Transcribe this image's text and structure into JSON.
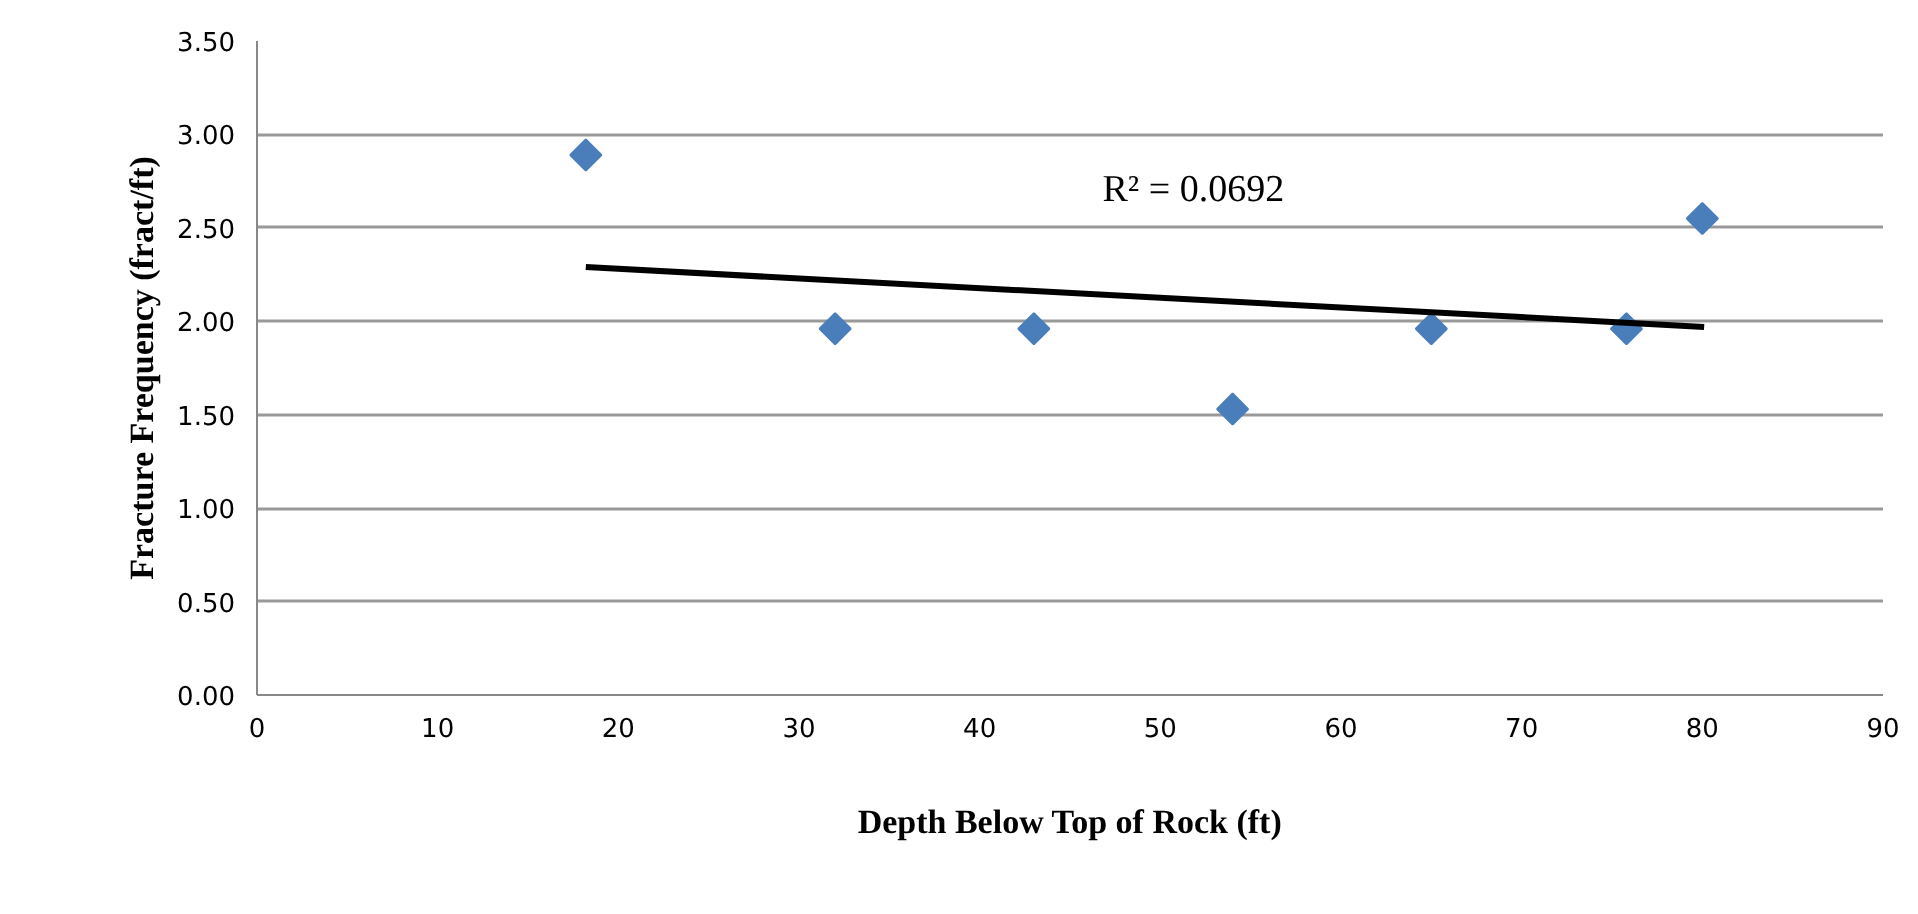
{
  "chart_data": {
    "type": "scatter",
    "xlabel": "Depth Below Top of Rock (ft)",
    "ylabel": "Fracture Frequency (fract/ft)",
    "xlim": [
      0,
      90
    ],
    "xticks": [
      0,
      10,
      20,
      30,
      40,
      50,
      60,
      70,
      80,
      90
    ],
    "ylim": [
      0,
      3.5
    ],
    "yticks": [
      {
        "value": 0,
        "label": "0.00"
      },
      {
        "value": 0.5,
        "label": "0.50"
      },
      {
        "value": 1,
        "label": "1.00"
      },
      {
        "value": 1.5,
        "label": "1.50"
      },
      {
        "value": 2,
        "label": "2.00"
      },
      {
        "value": 2.5,
        "label": "2.50"
      },
      {
        "value": 3,
        "label": "3.00"
      },
      {
        "value": 3.5,
        "label": "3.50"
      }
    ],
    "grid": "y",
    "series": [
      {
        "marker": "diamond",
        "color": "#4a7ebb",
        "x": [
          18.2,
          32.0,
          43.0,
          54.0,
          65.0,
          75.8,
          80.0
        ],
        "values": [
          2.89,
          1.96,
          1.96,
          1.53,
          1.96,
          1.96,
          2.55
        ]
      },
      {
        "type": "line",
        "color": "#000000",
        "x": [
          18.2,
          80.1
        ],
        "values": [
          2.29,
          1.97
        ]
      }
    ],
    "annotations": [
      "R² = 0.0692"
    ]
  }
}
